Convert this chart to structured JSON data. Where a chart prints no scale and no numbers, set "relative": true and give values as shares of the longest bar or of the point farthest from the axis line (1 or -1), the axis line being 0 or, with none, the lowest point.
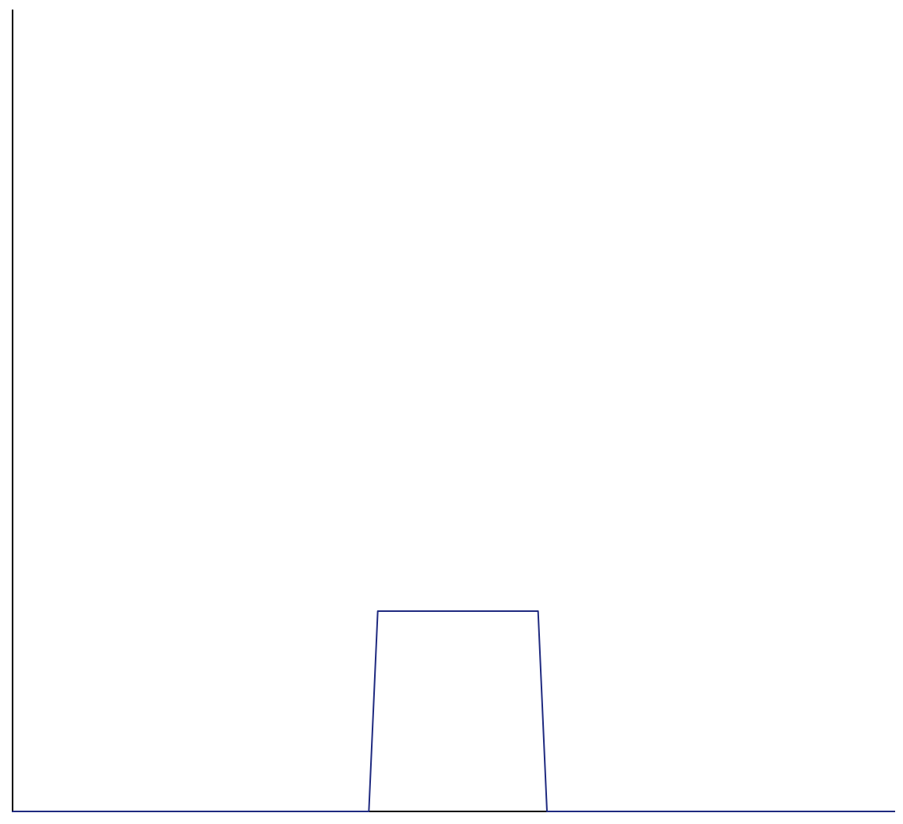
{
  "chart_data": {
    "type": "line",
    "relative": true,
    "grid": false,
    "marker": "none",
    "line_style": "solid",
    "categories": [
      null,
      null,
      null,
      null,
      null,
      null,
      null,
      null,
      null,
      null,
      null,
      null,
      null,
      null,
      null,
      null,
      null,
      null,
      null,
      null,
      null,
      null,
      null,
      null,
      null,
      null,
      null,
      null,
      null,
      null,
      null,
      null,
      null,
      null,
      null,
      null,
      null,
      null,
      null,
      null,
      null,
      null,
      null,
      null,
      null,
      null,
      null,
      null,
      null,
      null,
      null,
      null,
      null,
      null,
      null,
      null,
      null,
      null,
      null,
      null,
      null,
      null,
      null,
      null,
      null,
      null,
      null,
      null,
      null,
      null,
      null,
      null,
      null,
      null,
      null,
      null,
      null,
      null,
      null,
      null,
      null,
      null,
      null,
      null,
      null,
      null,
      null,
      null,
      null,
      null,
      null,
      null,
      null,
      null,
      null,
      null,
      null,
      null,
      null,
      null
    ],
    "series": [
      {
        "color": "#1f2a80",
        "values": [
          0,
          0,
          0,
          0,
          0,
          0,
          0,
          0,
          0,
          0,
          0,
          0,
          0,
          0,
          0,
          0,
          0,
          0,
          0,
          0,
          0,
          0,
          0,
          0,
          0,
          0,
          0,
          0,
          0,
          0,
          0,
          0,
          0,
          0,
          0,
          0,
          0,
          0,
          0,
          0,
          0,
          1,
          1,
          1,
          1,
          1,
          1,
          1,
          1,
          1,
          1,
          1,
          1,
          1,
          1,
          1,
          1,
          1,
          1,
          1,
          0,
          0,
          0,
          0,
          0,
          0,
          0,
          0,
          0,
          0,
          0,
          0,
          0,
          0,
          0,
          0,
          0,
          0,
          0,
          0,
          0,
          0,
          0,
          0,
          0,
          0,
          0,
          0,
          0,
          0,
          0,
          0,
          0,
          0,
          0,
          0,
          0,
          0,
          0,
          0
        ]
      }
    ]
  }
}
